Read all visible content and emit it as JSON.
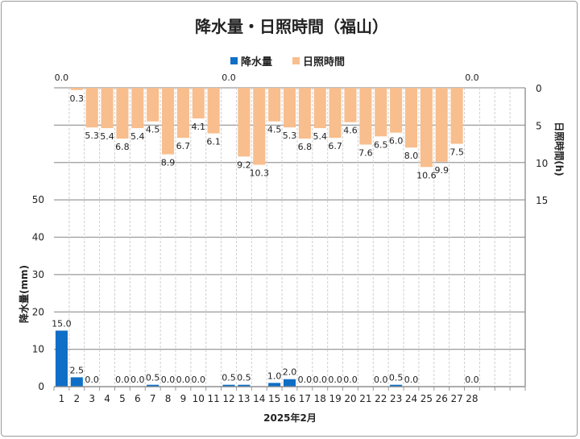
{
  "chart_data": {
    "type": "bar",
    "title": "降水量・日照時間（福山）",
    "xlabel": "2025年2月",
    "ylabel_left": "降水量(mm)",
    "ylabel_right": "日照時間(h)",
    "categories": [
      "1",
      "2",
      "3",
      "4",
      "5",
      "6",
      "7",
      "8",
      "9",
      "10",
      "11",
      "12",
      "13",
      "14",
      "15",
      "16",
      "17",
      "18",
      "19",
      "20",
      "21",
      "22",
      "23",
      "24",
      "25",
      "26",
      "27",
      "28",
      "",
      "",
      ""
    ],
    "ylim_left": [
      0,
      80
    ],
    "yticks_left": [
      0,
      10,
      20,
      30,
      40,
      50
    ],
    "ylim_right": [
      0,
      40
    ],
    "yticks_right": [
      0,
      5,
      10,
      15
    ],
    "right_axis_reversed": true,
    "grid": true,
    "legend_position": "top",
    "series": [
      {
        "name": "降水量",
        "axis": "left",
        "color": "#0F6FC6",
        "values": [
          15.0,
          2.5,
          0.0,
          null,
          0.0,
          0.0,
          0.5,
          0.0,
          0.0,
          0.0,
          null,
          0.5,
          0.5,
          null,
          1.0,
          2.0,
          0.0,
          0.0,
          0.0,
          0.0,
          null,
          0.0,
          0.5,
          0.0,
          null,
          null,
          null,
          0.0,
          null,
          null,
          null
        ]
      },
      {
        "name": "日照時間",
        "axis": "right",
        "color": "#F8BE8D",
        "values": [
          0.0,
          0.3,
          5.3,
          5.4,
          6.8,
          5.4,
          4.5,
          8.9,
          6.7,
          4.1,
          6.1,
          0.0,
          9.2,
          10.3,
          4.5,
          5.3,
          6.8,
          5.4,
          6.7,
          4.6,
          7.6,
          6.5,
          6.0,
          8.0,
          10.6,
          9.9,
          7.5,
          0.0,
          null,
          null,
          null
        ]
      }
    ]
  }
}
